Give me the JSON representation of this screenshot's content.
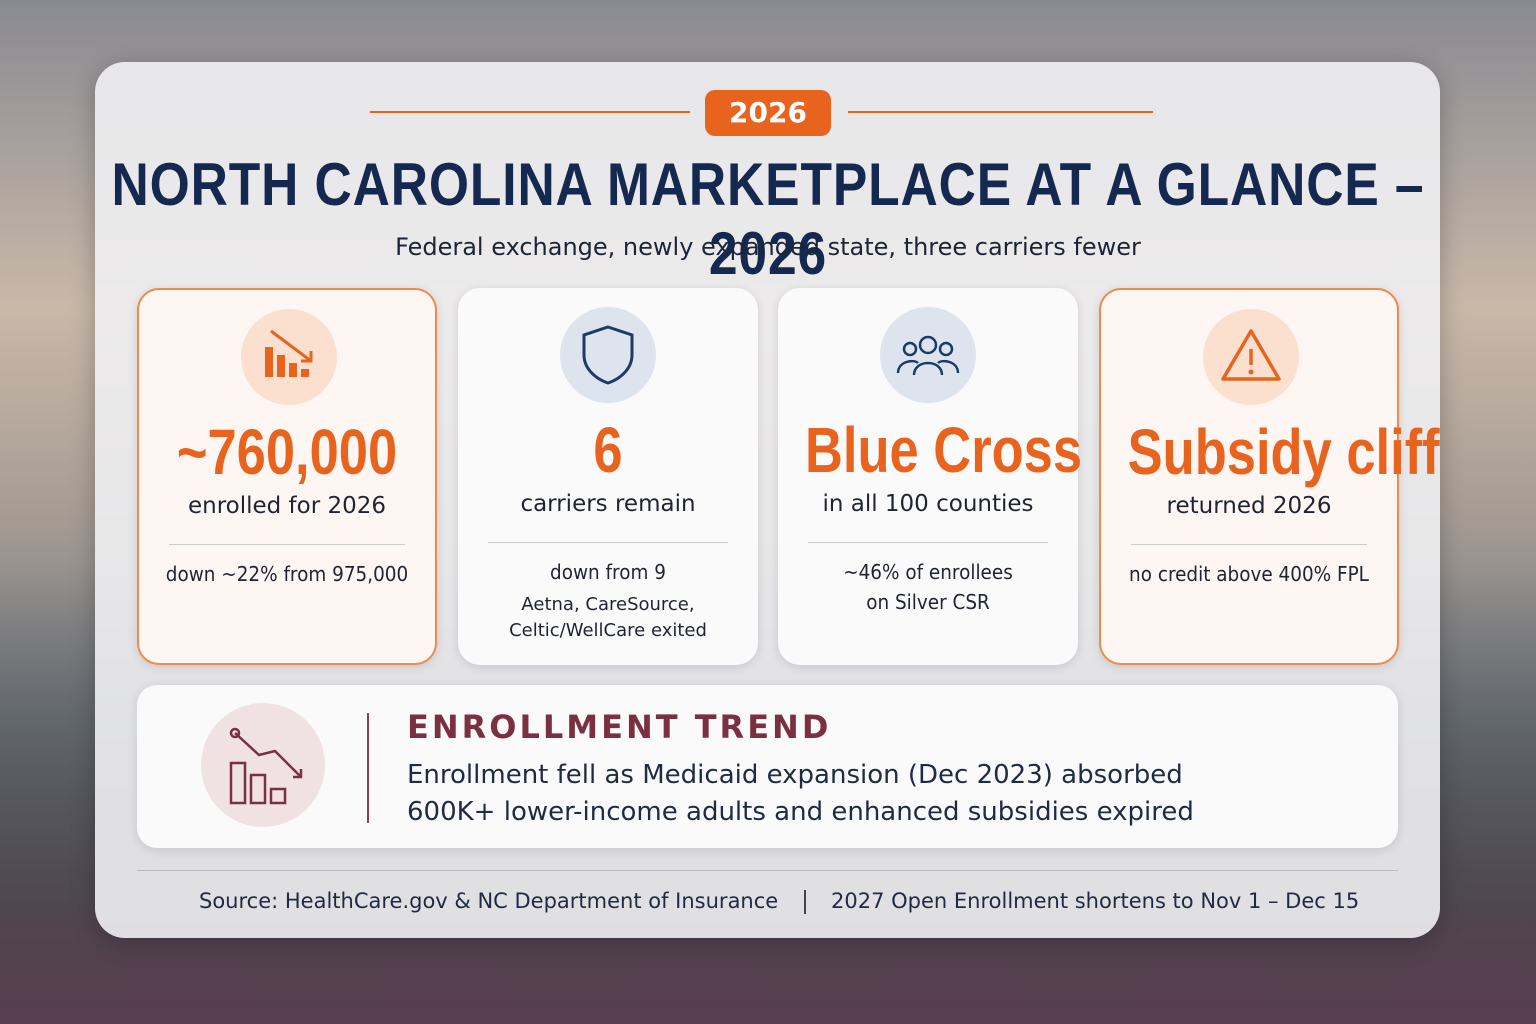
{
  "badge": "2026",
  "title": "NORTH CAROLINA MARKETPLACE AT A GLANCE – 2026",
  "subtitle": "Federal exchange, newly expanded state, three carriers fewer",
  "cards": [
    {
      "value": "~760,000",
      "label": "enrolled for 2026",
      "notes": [
        "down ~22% from 975,000"
      ]
    },
    {
      "value": "6",
      "label": "carriers remain",
      "notes": [
        "down from 9"
      ],
      "details": [
        "Aetna, CareSource,",
        "Celtic/WellCare exited"
      ]
    },
    {
      "value": "Blue Cross NC",
      "label": "in all 100 counties",
      "notes": [
        "~46% of enrollees",
        "on Silver CSR"
      ]
    },
    {
      "value": "Subsidy cliff",
      "label": "returned 2026",
      "notes": [
        "no credit above 400% FPL"
      ]
    }
  ],
  "trend": {
    "title": "ENROLLMENT TREND",
    "lines": [
      "Enrollment fell as Medicaid expansion (Dec 2023) absorbed",
      "600K+ lower-income adults and enhanced subsidies expired"
    ]
  },
  "footer": {
    "source": "Source: HealthCare.gov & NC Department of Insurance",
    "note": "2027 Open Enrollment shortens to Nov 1 – Dec 15"
  }
}
